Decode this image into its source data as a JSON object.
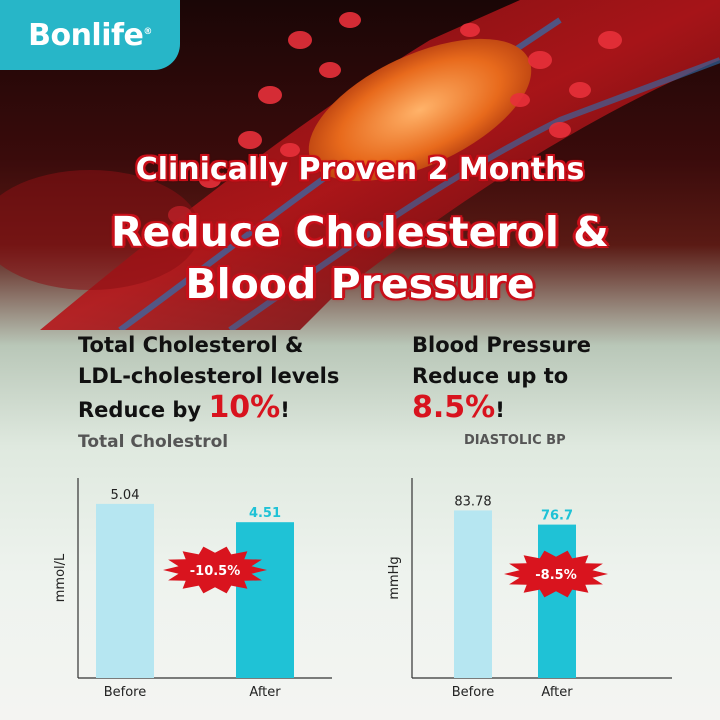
{
  "brand": {
    "name": "Bonlife",
    "mark": "®"
  },
  "headline": {
    "line1": "Clinically Proven 2 Months",
    "line2": "Reduce Cholesterol &",
    "line3": "Blood Pressure"
  },
  "left_panel": {
    "line1": "Total Cholesterol &",
    "line2": "LDL-cholesterol levels",
    "line3_prefix": "Reduce by ",
    "highlight": "10%",
    "suffix": "!",
    "chart_title": "Total Cholestrol"
  },
  "right_panel": {
    "line1": "Blood Pressure",
    "line2": "Reduce  up to",
    "highlight": "8.5%",
    "suffix": "!",
    "chart_title": "DIASTOLIC BP"
  },
  "colors": {
    "before_bar": "#b6e6f1",
    "after_bar": "#1fc2d6",
    "burst": "#d9141e",
    "after_label": "#1fc2d6",
    "accent_red": "#d8131e",
    "brand": "#27b6c8"
  },
  "chart_data": [
    {
      "type": "bar",
      "title": "Total Cholestrol",
      "ylabel": "mmol/L",
      "categories": [
        "Before",
        "After"
      ],
      "values": [
        5.04,
        4.51
      ],
      "value_labels": [
        "5.04",
        "4.51"
      ],
      "change_label": "-10.5%",
      "ylim": [
        0,
        5.5
      ]
    },
    {
      "type": "bar",
      "title": "DIASTOLIC BP",
      "ylabel": "mmHg",
      "categories": [
        "Before",
        "After"
      ],
      "values": [
        83.78,
        76.7
      ],
      "value_labels": [
        "83.78",
        "76.7"
      ],
      "change_label": "-8.5%",
      "ylim": [
        0,
        95
      ]
    }
  ]
}
